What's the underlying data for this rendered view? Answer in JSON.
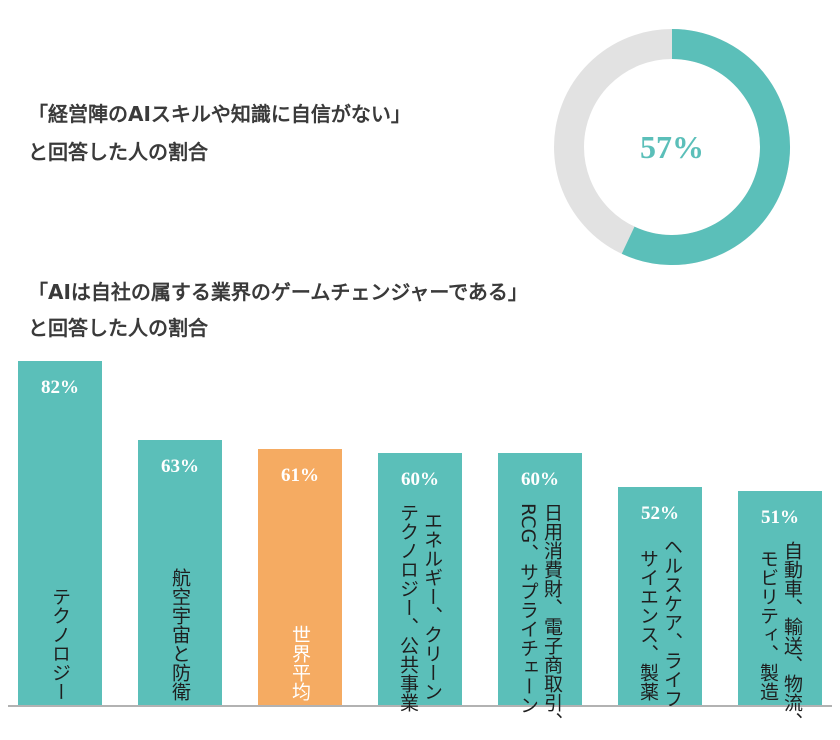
{
  "chart_data": [
    {
      "type": "donut",
      "title": [
        "「経営陣のAIスキルや知識に自信がない」",
        "と回答した人の割合"
      ],
      "values": [
        57
      ],
      "value_labels": [
        "57%"
      ],
      "color": "#5bbfb9",
      "track_color": "#e2e2e2"
    },
    {
      "type": "bar",
      "title": [
        "「AIは自社の属する業界のゲームチェンジャーである」",
        "と回答した人の割合"
      ],
      "categories": [
        "テクノロジー",
        "航空宇宙と防衛",
        "世界平均",
        "エネルギー、クリーン\nテクノロジー、公共事業",
        "日用消費財、電子商取引、\nRCG、サプライチェーン",
        "ヘルスケア、ライフ\nサイエンス、製薬",
        "自動車、輸送、物流、\nモビリティ、製造"
      ],
      "values": [
        82,
        63,
        61,
        60,
        60,
        52,
        51
      ],
      "value_labels": [
        "82%",
        "63%",
        "61%",
        "60%",
        "60%",
        "52%",
        "51%"
      ],
      "colors": [
        "#5bbfb9",
        "#5bbfb9",
        "#f5ab62",
        "#5bbfb9",
        "#5bbfb9",
        "#5bbfb9",
        "#5bbfb9"
      ]
    }
  ]
}
